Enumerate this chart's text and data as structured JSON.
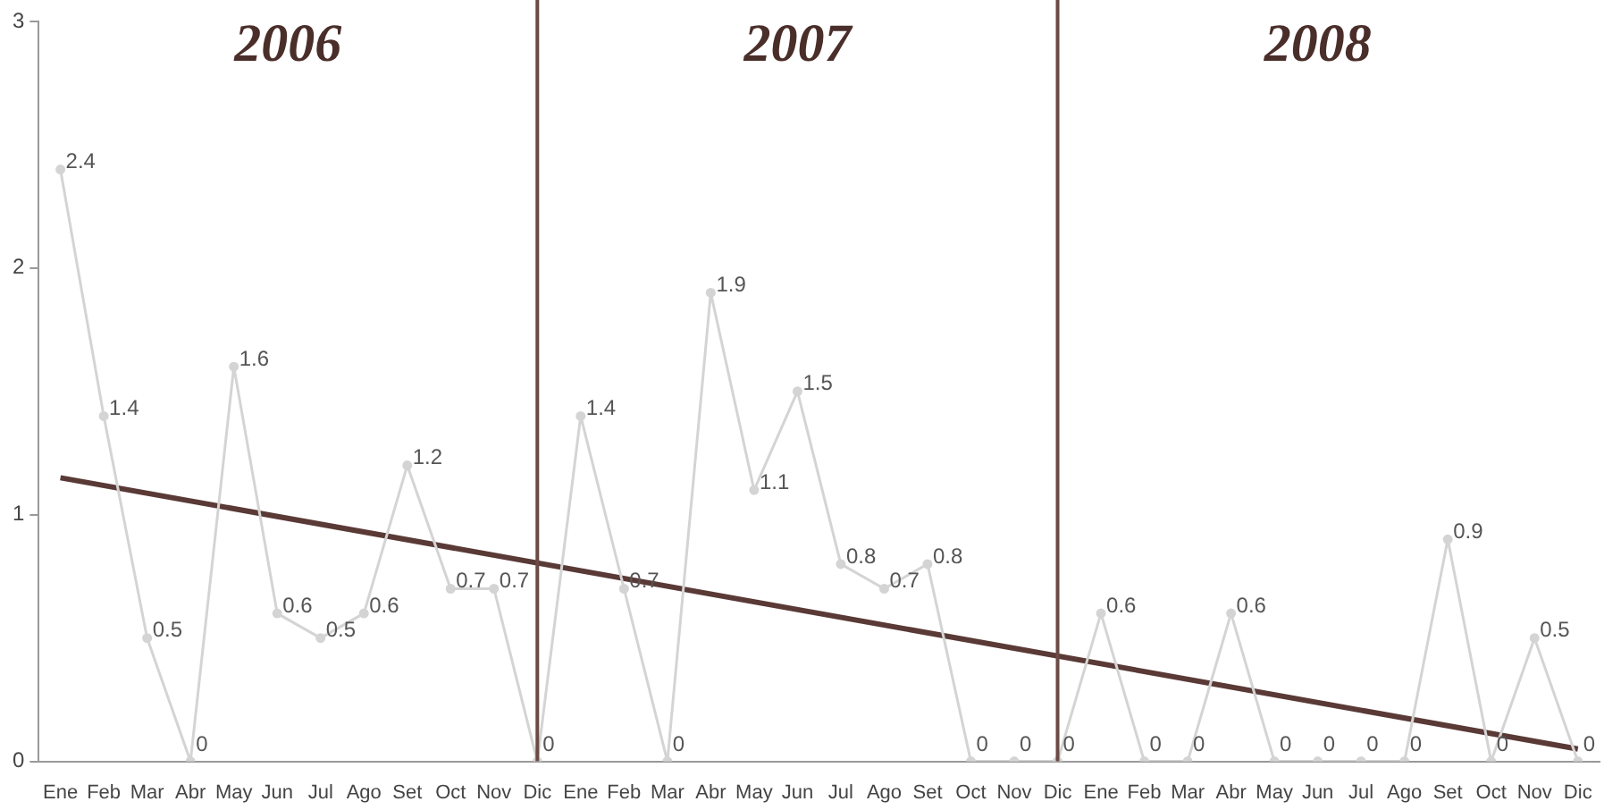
{
  "chart_data": {
    "type": "line",
    "categories": [
      "Ene",
      "Feb",
      "Mar",
      "Abr",
      "May",
      "Jun",
      "Jul",
      "Ago",
      "Set",
      "Oct",
      "Nov",
      "Dic",
      "Ene",
      "Feb",
      "Mar",
      "Abr",
      "May",
      "Jun",
      "Jul",
      "Ago",
      "Set",
      "Oct",
      "Nov",
      "Dic",
      "Ene",
      "Feb",
      "Mar",
      "Abr",
      "May",
      "Jun",
      "Jul",
      "Ago",
      "Set",
      "Oct",
      "Nov",
      "Dic"
    ],
    "series": [
      {
        "color": "#d4d4d4",
        "marker": "circle",
        "values": [
          2.4,
          1.4,
          0.5,
          0,
          1.6,
          0.6,
          0.5,
          0.6,
          1.2,
          0.7,
          0.7,
          0,
          1.4,
          0.7,
          0,
          1.9,
          1.1,
          1.5,
          0.8,
          0.7,
          0.8,
          0,
          0,
          0,
          0.6,
          0,
          0,
          0.6,
          0,
          0,
          0,
          0,
          0.9,
          0,
          0.5,
          0
        ],
        "value_labels": [
          "2.4",
          "1.4",
          "0.5",
          "0",
          "1.6",
          "0.6",
          "0.5",
          "0.6",
          "1.2",
          "0.7",
          "0.7",
          "0",
          "1.4",
          "0.7",
          "0",
          "1.9",
          "1.1",
          "1.5",
          "0.8",
          "0.7",
          "0.8",
          "0",
          "0",
          "0",
          "0.6",
          "0",
          "0",
          "0.6",
          "0",
          "0",
          "0",
          "0",
          "0.9",
          "0",
          "0.5",
          "0"
        ]
      },
      {
        "type": "line",
        "color": "#5a3a36",
        "values": [
          1.15,
          null,
          null,
          null,
          null,
          null,
          null,
          null,
          null,
          null,
          null,
          null,
          null,
          null,
          null,
          null,
          null,
          null,
          null,
          null,
          null,
          null,
          null,
          null,
          null,
          null,
          null,
          null,
          null,
          null,
          null,
          null,
          null,
          null,
          null,
          0.05
        ]
      }
    ],
    "ylim": [
      0,
      3
    ],
    "yticks": [
      0,
      1,
      2,
      3
    ],
    "legend": false,
    "line_style": "solid",
    "annotations": [
      "2006",
      "2007",
      "2008"
    ]
  }
}
